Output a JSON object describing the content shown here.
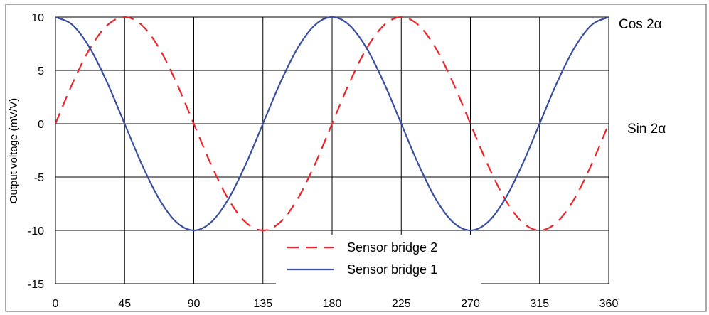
{
  "chart_data": {
    "type": "line",
    "title": "",
    "xlabel": "",
    "ylabel": "Output voltage (mV/V)",
    "xlim": [
      0,
      360
    ],
    "ylim": [
      -15,
      10
    ],
    "x_ticks": [
      "0",
      "45",
      "90",
      "135",
      "180",
      "225",
      "270",
      "315",
      "360"
    ],
    "y_ticks": [
      "10",
      "5",
      "0",
      "-5",
      "-10",
      "-15"
    ],
    "grid": true,
    "legend_position": "bottom-center",
    "x": [
      0,
      11.25,
      22.5,
      33.75,
      45,
      56.25,
      67.5,
      78.75,
      90,
      101.25,
      112.5,
      123.75,
      135,
      146.25,
      157.5,
      168.75,
      180,
      191.25,
      202.5,
      213.75,
      225,
      236.25,
      247.5,
      258.75,
      270,
      281.25,
      292.5,
      303.75,
      315,
      326.25,
      337.5,
      348.75,
      360
    ],
    "series": [
      {
        "name": "Sensor bridge 2",
        "style": "dashed",
        "color": "#e8262b",
        "values": [
          0,
          3.83,
          7.07,
          9.24,
          10,
          9.24,
          7.07,
          3.83,
          0,
          -3.83,
          -7.07,
          -9.24,
          -10,
          -9.24,
          -7.07,
          -3.83,
          0,
          3.83,
          7.07,
          9.24,
          10,
          9.24,
          7.07,
          3.83,
          0,
          -3.83,
          -7.07,
          -9.24,
          -10,
          -9.24,
          -7.07,
          -3.83,
          0
        ]
      },
      {
        "name": "Sensor bridge 1",
        "style": "solid",
        "color": "#3a4fa0",
        "values": [
          10,
          9.24,
          7.07,
          3.83,
          0,
          -3.83,
          -7.07,
          -9.24,
          -10,
          -9.24,
          -7.07,
          -3.83,
          0,
          3.83,
          7.07,
          9.24,
          10,
          9.24,
          7.07,
          3.83,
          0,
          -3.83,
          -7.07,
          -9.24,
          -10,
          -9.24,
          -7.07,
          -3.83,
          0,
          3.83,
          7.07,
          9.24,
          10
        ]
      }
    ],
    "annotations": [
      {
        "text": "Cos 2α",
        "series": "Sensor bridge 1"
      },
      {
        "text": "Sin 2α",
        "series": "Sensor bridge 2"
      }
    ]
  }
}
